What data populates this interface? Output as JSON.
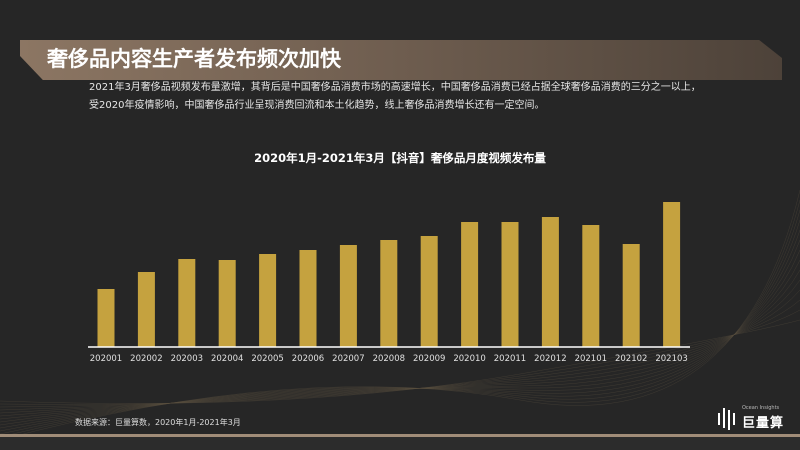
{
  "header": {
    "title": "奢侈品内容生产者发布频次加快"
  },
  "description": [
    "2021年3月奢侈品视频发布量激增，其背后是中国奢侈品消费市场的高速增长，中国奢侈品消费已经占据全球奢侈品消费的三分之一以上，",
    "受2020年疫情影响，中国奢侈品行业呈现消费回流和本土化趋势，线上奢侈品消费增长还有一定空间。"
  ],
  "chart_data": {
    "type": "bar",
    "title": "2020年1月-2021年3月【抖音】奢侈品月度视频发布量",
    "categories": [
      "202001",
      "202002",
      "202003",
      "202004",
      "202005",
      "202006",
      "202007",
      "202008",
      "202009",
      "202010",
      "202011",
      "202012",
      "202101",
      "202102",
      "202103"
    ],
    "values": [
      58,
      75,
      88,
      87,
      93,
      97,
      102,
      107,
      111,
      125,
      125,
      130,
      122,
      103,
      145
    ],
    "value_note": "relative heights; no y-axis shown",
    "grid": false,
    "bar_color": "#c5a23f"
  },
  "footer": {
    "source": "数据来源：巨量算数，2020年1月-2021年3月"
  },
  "logo": {
    "sub": "Ocean Insights",
    "main": "巨量算数"
  }
}
